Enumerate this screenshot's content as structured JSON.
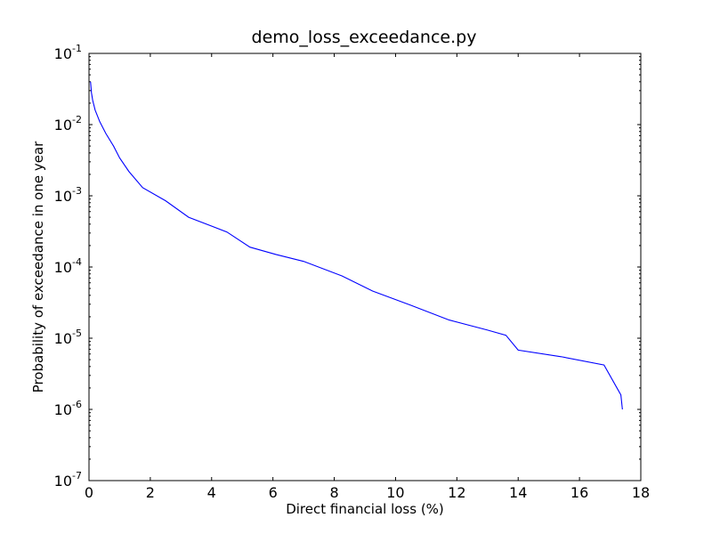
{
  "chart_data": {
    "type": "line",
    "title": "demo_loss_exceedance.py",
    "xlabel": "Direct financial loss (%)",
    "ylabel": "Probability of exceedance in one year",
    "xlim": [
      0,
      18
    ],
    "ylim": [
      1e-07,
      0.1
    ],
    "yscale": "log",
    "grid": false,
    "x_ticks": [
      0,
      2,
      4,
      6,
      8,
      10,
      12,
      14,
      16,
      18
    ],
    "x_tick_labels": [
      "0",
      "2",
      "4",
      "6",
      "8",
      "10",
      "12",
      "14",
      "16",
      "18"
    ],
    "y_ticks": [
      {
        "value": 1e-07,
        "base": "10",
        "exp": "-7"
      },
      {
        "value": 1e-06,
        "base": "10",
        "exp": "-6"
      },
      {
        "value": 1e-05,
        "base": "10",
        "exp": "-5"
      },
      {
        "value": 0.0001,
        "base": "10",
        "exp": "-4"
      },
      {
        "value": 0.001,
        "base": "10",
        "exp": "-3"
      },
      {
        "value": 0.01,
        "base": "10",
        "exp": "-2"
      },
      {
        "value": 0.1,
        "base": "10",
        "exp": "-1"
      }
    ],
    "line_color": "#0000ff",
    "series": [
      {
        "x": [
          0.05,
          0.08,
          0.12,
          0.2,
          0.35,
          0.55,
          0.8,
          1.0,
          1.3,
          1.75,
          2.5,
          3.25,
          4.5,
          5.25,
          6.1,
          7.0,
          8.25,
          9.25,
          10.5,
          11.75,
          13.0,
          13.6,
          14.0,
          15.4,
          16.8,
          17.35,
          17.4
        ],
        "y": [
          0.04,
          0.028,
          0.022,
          0.016,
          0.011,
          0.0075,
          0.005,
          0.0034,
          0.0022,
          0.0013,
          0.00085,
          0.0005,
          0.00031,
          0.00019,
          0.00015,
          0.00012,
          7.5e-05,
          4.6e-05,
          2.9e-05,
          1.8e-05,
          1.3e-05,
          1.1e-05,
          6.8e-06,
          5.5e-06,
          4.2e-06,
          1.6e-06,
          1e-06
        ]
      }
    ]
  }
}
